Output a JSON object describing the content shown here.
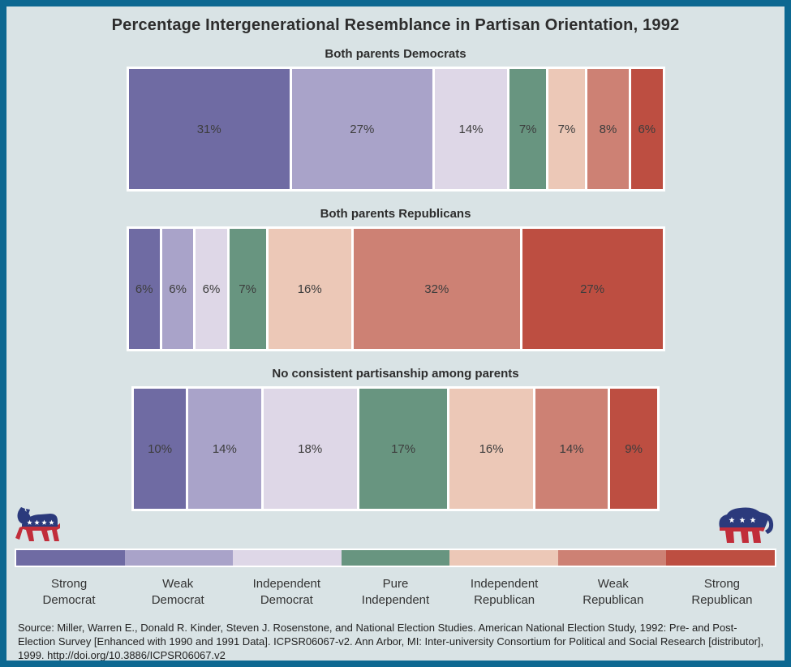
{
  "title": "Percentage Intergenerational Resemblance in Partisan Orientation, 1992",
  "colors": {
    "frame_border": "#0d6891",
    "background": "#d9e3e5",
    "segment_palette": [
      "#6f6ba3",
      "#a9a3c9",
      "#ded7e7",
      "#689580",
      "#ecc8b7",
      "#cd8174",
      "#bd4e41"
    ],
    "democrat_blue": "#2b3a7c",
    "republican_red": "#c12d3a",
    "bar_outline": "#ffffff"
  },
  "chart_data": {
    "type": "bar",
    "stacked": true,
    "orientation": "horizontal",
    "units": "percent",
    "title": "Percentage Intergenerational Resemblance in Partisan Orientation, 1992",
    "categories": [
      "Strong Democrat",
      "Weak Democrat",
      "Independent Democrat",
      "Pure Independent",
      "Independent Republican",
      "Weak Republican",
      "Strong Republican"
    ],
    "series": [
      {
        "name": "Both parents Democrats",
        "values": [
          31,
          27,
          14,
          7,
          7,
          8,
          6
        ]
      },
      {
        "name": "Both parents Republicans",
        "values": [
          6,
          6,
          6,
          7,
          16,
          32,
          27
        ]
      },
      {
        "name": "No consistent partisanship among parents",
        "values": [
          10,
          14,
          18,
          17,
          16,
          14,
          9
        ]
      }
    ],
    "value_suffix": "%",
    "legend_position": "bottom",
    "grid": false
  },
  "legend": {
    "items": [
      {
        "label": "Strong\nDemocrat",
        "color": "#6f6ba3"
      },
      {
        "label": "Weak\nDemocrat",
        "color": "#a9a3c9"
      },
      {
        "label": "Independent\nDemocrat",
        "color": "#ded7e7"
      },
      {
        "label": "Pure\nIndependent",
        "color": "#689580"
      },
      {
        "label": "Independent\nRepublican",
        "color": "#ecc8b7"
      },
      {
        "label": "Weak\nRepublican",
        "color": "#cd8174"
      },
      {
        "label": "Strong\nRepublican",
        "color": "#bd4e41"
      }
    ]
  },
  "icons": {
    "left": "democratic-donkey-icon",
    "right": "republican-elephant-icon"
  },
  "source": {
    "text": "Source: Miller, Warren E., Donald R. Kinder, Steven J. Rosenstone, and National Election Studies. American National Election Study, 1992: Pre- and Post-Election Survey [Enhanced with 1990 and 1991 Data]. ICPSR06067-v2. Ann Arbor, MI: Inter-university Consortium for Political and Social Research [distributor], 1999. http://doi.org/10.3886/ICPSR06067.v2"
  }
}
